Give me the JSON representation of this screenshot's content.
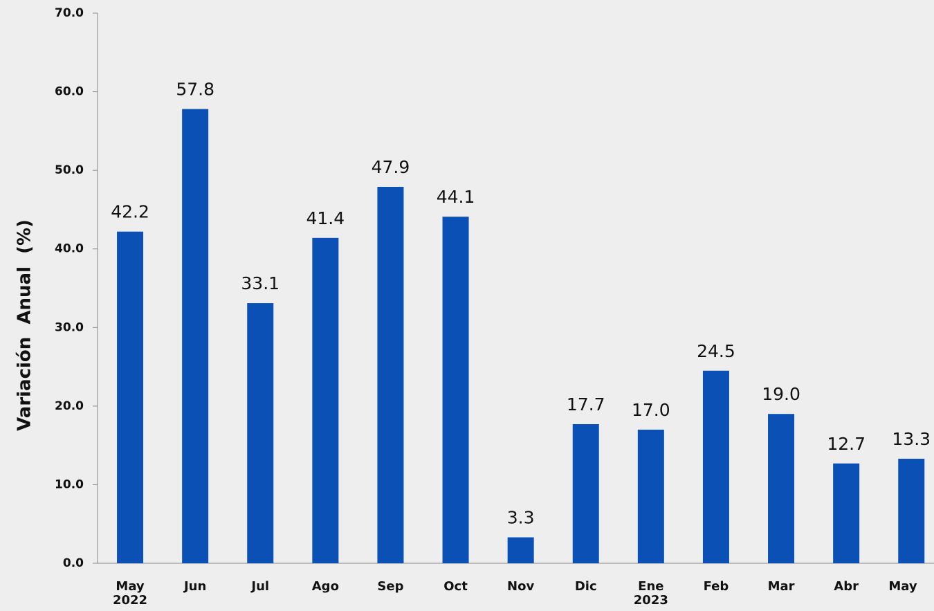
{
  "chart_data": {
    "type": "bar",
    "y_axis_label": "Variación  Anual  (%)",
    "categories": [
      "May\n2022",
      "Jun",
      "Jul",
      "Ago",
      "Sep",
      "Oct",
      "Nov",
      "Dic",
      "Ene\n2023",
      "Feb",
      "Mar",
      "Abr",
      "May"
    ],
    "values": [
      42.2,
      57.8,
      33.1,
      41.4,
      47.9,
      44.1,
      3.3,
      17.7,
      17.0,
      24.5,
      19.0,
      12.7,
      13.3
    ],
    "value_labels": [
      "42.2",
      "57.8",
      "33.1",
      "41.4",
      "47.9",
      "44.1",
      "3.3",
      "17.7",
      "17.0",
      "24.5",
      "19.0",
      "12.7",
      "13.3"
    ],
    "color": "#0b50b4",
    "ylim": [
      0,
      70
    ],
    "yticks": [
      {
        "value": 0,
        "label": "0.0"
      },
      {
        "value": 10,
        "label": "10.0"
      },
      {
        "value": 20,
        "label": "20.0"
      },
      {
        "value": 30,
        "label": "30.0"
      },
      {
        "value": 40,
        "label": "40.0"
      },
      {
        "value": 50,
        "label": "50.0"
      },
      {
        "value": 60,
        "label": "60.0"
      },
      {
        "value": 70,
        "label": "70.0"
      }
    ],
    "grid": false
  }
}
